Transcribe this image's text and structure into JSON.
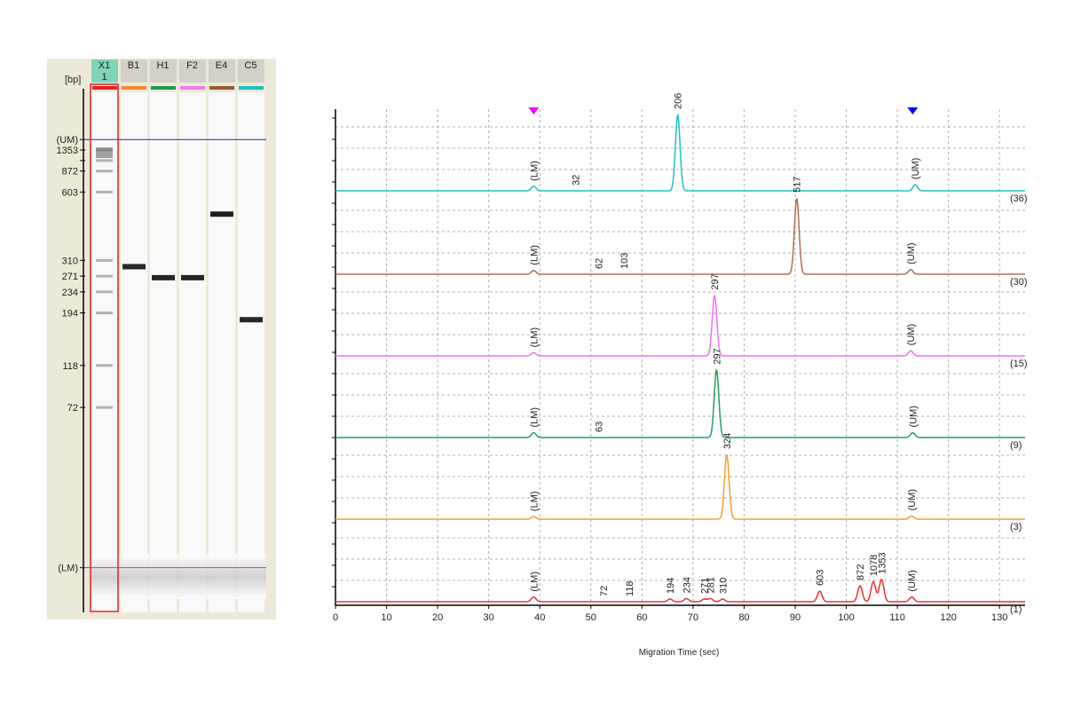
{
  "gel": {
    "unit_label": "[bp]",
    "lanes": [
      {
        "name": "X1",
        "sub": "1",
        "color": "#e8202a",
        "header_color": "#7fd3b8",
        "selected": true
      },
      {
        "name": "B1",
        "sub": "",
        "color": "#f08a2a",
        "header_color": "#d4d0c8",
        "selected": false
      },
      {
        "name": "H1",
        "sub": "",
        "color": "#1f9a4e",
        "header_color": "#d4d0c8",
        "selected": false
      },
      {
        "name": "F2",
        "sub": "",
        "color": "#f07cf0",
        "header_color": "#d4d0c8",
        "selected": false
      },
      {
        "name": "E4",
        "sub": "",
        "color": "#9a5a35",
        "header_color": "#d4d0c8",
        "selected": false
      },
      {
        "name": "C5",
        "sub": "",
        "color": "#1fbfbf",
        "header_color": "#d4d0c8",
        "selected": false
      }
    ],
    "markers": [
      {
        "label": "(UM)",
        "level": 0.1
      },
      {
        "label": "1353",
        "level": 0.12
      },
      {
        "label": "1078",
        "level": 0.14
      },
      {
        "label": "872",
        "level": 0.16
      },
      {
        "label": "603",
        "level": 0.2
      },
      {
        "label": "310",
        "level": 0.33
      },
      {
        "label": "271",
        "level": 0.36
      },
      {
        "label": "234",
        "level": 0.39
      },
      {
        "label": "194",
        "level": 0.43
      },
      {
        "label": "118",
        "level": 0.53
      },
      {
        "label": "72",
        "level": 0.61
      },
      {
        "label": "(LM)",
        "level": 0.915
      }
    ],
    "visible_marker_labels": [
      "(UM)",
      "1353",
      "872",
      "603",
      "310",
      "271",
      "234",
      "194",
      "118",
      "72",
      "(LM)"
    ],
    "lane_bands": [
      {
        "lane": 1,
        "level": 0.342,
        "intensity": 0.95
      },
      {
        "lane": 2,
        "level": 0.363,
        "intensity": 0.95
      },
      {
        "lane": 3,
        "level": 0.363,
        "intensity": 0.95
      },
      {
        "lane": 4,
        "level": 0.242,
        "intensity": 0.98
      },
      {
        "lane": 5,
        "level": 0.443,
        "intensity": 0.95
      }
    ],
    "upper_marker_color": "#2020c0",
    "lower_marker_color": "#e020e0"
  },
  "chart_data": {
    "type": "line",
    "title": "",
    "xlabel": "Migration Time (sec)",
    "ylabel": "",
    "xlim": [
      0,
      135
    ],
    "xticks": [
      0,
      10,
      20,
      30,
      40,
      50,
      60,
      70,
      80,
      90,
      100,
      110,
      120,
      130
    ],
    "top_markers": [
      {
        "x": 38.8,
        "color": "#ff00ff"
      },
      {
        "x": 113,
        "color": "#0000ff"
      }
    ],
    "series": [
      {
        "name": "C5",
        "index_label": "(36)",
        "color": "#20c0c0",
        "peaks": [
          {
            "x": 38.8,
            "height": 0.06,
            "label": "(LM)"
          },
          {
            "x": 47,
            "height": 0.0,
            "label": "32"
          },
          {
            "x": 67,
            "height": 1.0,
            "label": "206"
          },
          {
            "x": 113.5,
            "height": 0.08,
            "label": "(UM)"
          }
        ]
      },
      {
        "name": "E4",
        "index_label": "(30)",
        "color": "#b07050",
        "peaks": [
          {
            "x": 38.8,
            "height": 0.05,
            "label": "(LM)"
          },
          {
            "x": 51.5,
            "height": 0.0,
            "label": "62"
          },
          {
            "x": 56.5,
            "height": 0.0,
            "label": "103"
          },
          {
            "x": 90.3,
            "height": 1.0,
            "label": "517"
          },
          {
            "x": 112.6,
            "height": 0.06,
            "label": "(UM)"
          }
        ]
      },
      {
        "name": "F2",
        "index_label": "(15)",
        "color": "#f070f0",
        "peaks": [
          {
            "x": 38.8,
            "height": 0.05,
            "label": "(LM)"
          },
          {
            "x": 74.2,
            "height": 0.95,
            "label": "297"
          },
          {
            "x": 112.6,
            "height": 0.08,
            "label": "(UM)"
          }
        ]
      },
      {
        "name": "H1",
        "index_label": "(9)",
        "color": "#20a060",
        "peaks": [
          {
            "x": 38.8,
            "height": 0.07,
            "label": "(LM)"
          },
          {
            "x": 51.5,
            "height": 0.0,
            "label": "63"
          },
          {
            "x": 74.6,
            "height": 0.98,
            "label": "297"
          },
          {
            "x": 113,
            "height": 0.07,
            "label": "(UM)"
          }
        ]
      },
      {
        "name": "B1",
        "index_label": "(3)",
        "color": "#f0a030",
        "peaks": [
          {
            "x": 38.8,
            "height": 0.04,
            "label": "(LM)"
          },
          {
            "x": 76.6,
            "height": 1.0,
            "label": "324"
          },
          {
            "x": 112.8,
            "height": 0.05,
            "label": "(UM)"
          }
        ]
      },
      {
        "name": "X1",
        "index_label": "(1)",
        "color": "#f03030",
        "peaks": [
          {
            "x": 38.8,
            "height": 0.09,
            "label": "(LM)"
          },
          {
            "x": 52.5,
            "height": 0.0,
            "label": "72"
          },
          {
            "x": 57.5,
            "height": 0.0,
            "label": "118"
          },
          {
            "x": 65.5,
            "height": 0.05,
            "label": "194"
          },
          {
            "x": 68.7,
            "height": 0.06,
            "label": "234"
          },
          {
            "x": 72.2,
            "height": 0.05,
            "label": "271"
          },
          {
            "x": 73.4,
            "height": 0.06,
            "label": "281"
          },
          {
            "x": 75.8,
            "height": 0.05,
            "label": "310"
          },
          {
            "x": 94.8,
            "height": 0.2,
            "label": "603"
          },
          {
            "x": 102.7,
            "height": 0.3,
            "label": "872"
          },
          {
            "x": 105.3,
            "height": 0.38,
            "label": "1078"
          },
          {
            "x": 106.9,
            "height": 0.42,
            "label": "1353"
          },
          {
            "x": 112.8,
            "height": 0.09,
            "label": "(UM)"
          }
        ]
      }
    ]
  }
}
